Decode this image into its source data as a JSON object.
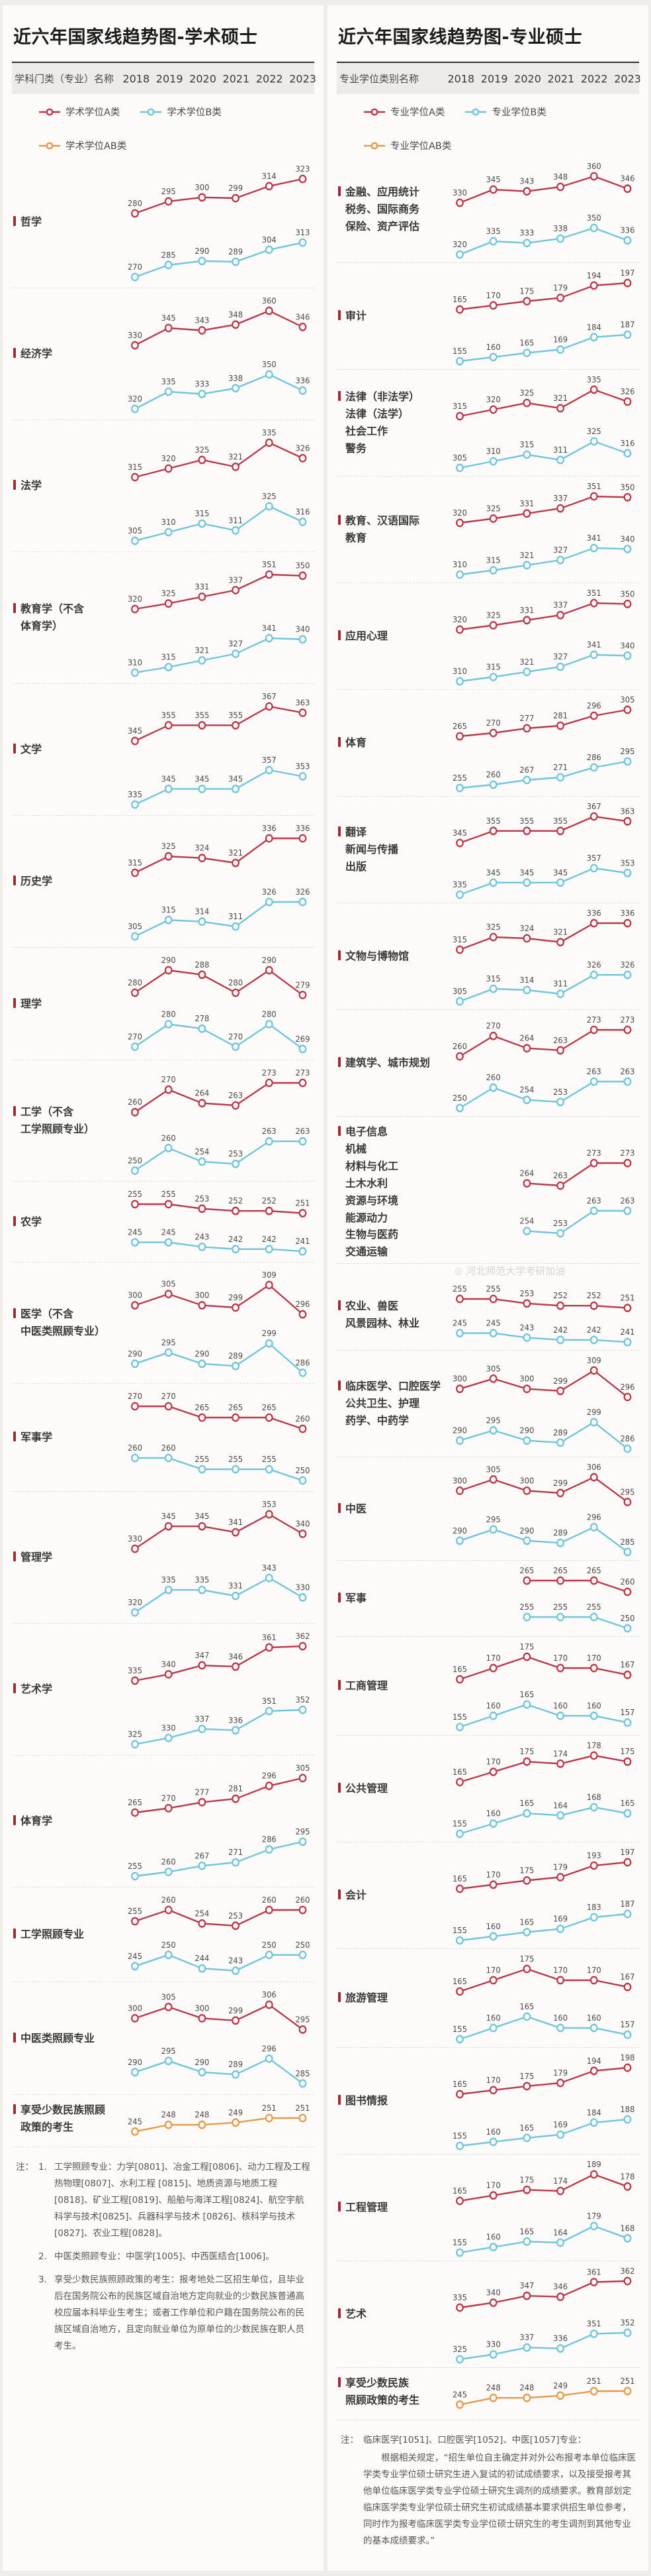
{
  "colors": {
    "a": "#b8394a",
    "b": "#72c5d8",
    "ab": "#e29a4b"
  },
  "chart_data": {
    "type": "line",
    "x": [
      2018,
      2019,
      2020,
      2021,
      2022,
      2023
    ],
    "grid": false,
    "legend_position": "top",
    "panels": [
      {
        "title": "近六年国家线趋势图-学术硕士",
        "name_header": "学科门类（专业）名称",
        "legend": [
          {
            "key": "a",
            "label": "学术学位A类"
          },
          {
            "key": "b",
            "label": "学术学位B类"
          },
          {
            "key": "ab",
            "label": "学术学位AB类"
          }
        ],
        "rows": [
          {
            "label": [
              "哲学"
            ],
            "a": [
              280,
              295,
              300,
              299,
              314,
              323
            ],
            "b": [
              270,
              285,
              290,
              289,
              304,
              313
            ]
          },
          {
            "label": [
              "经济学"
            ],
            "a": [
              330,
              345,
              343,
              348,
              360,
              346
            ],
            "b": [
              320,
              335,
              333,
              338,
              350,
              336
            ]
          },
          {
            "label": [
              "法学"
            ],
            "a": [
              315,
              320,
              325,
              321,
              335,
              326
            ],
            "b": [
              305,
              310,
              315,
              311,
              325,
              316
            ]
          },
          {
            "label": [
              "教育学（不含",
              "体育学）"
            ],
            "a": [
              320,
              325,
              331,
              337,
              351,
              350
            ],
            "b": [
              310,
              315,
              321,
              327,
              341,
              340
            ]
          },
          {
            "label": [
              "文学"
            ],
            "a": [
              345,
              355,
              355,
              355,
              367,
              363
            ],
            "b": [
              335,
              345,
              345,
              345,
              357,
              353
            ]
          },
          {
            "label": [
              "历史学"
            ],
            "a": [
              315,
              325,
              324,
              321,
              336,
              336
            ],
            "b": [
              305,
              315,
              314,
              311,
              326,
              326
            ]
          },
          {
            "label": [
              "理学"
            ],
            "a": [
              280,
              290,
              288,
              280,
              290,
              279
            ],
            "b": [
              270,
              280,
              278,
              270,
              280,
              269
            ]
          },
          {
            "label": [
              "工学（不含",
              "工学照顾专业）"
            ],
            "a": [
              260,
              270,
              264,
              263,
              273,
              273
            ],
            "b": [
              250,
              260,
              254,
              253,
              263,
              263
            ]
          },
          {
            "label": [
              "农学"
            ],
            "a": [
              255,
              255,
              253,
              252,
              252,
              251
            ],
            "b": [
              245,
              245,
              243,
              242,
              242,
              241
            ]
          },
          {
            "label": [
              "医学（不含",
              "中医类照顾专业）"
            ],
            "a": [
              300,
              305,
              300,
              299,
              309,
              296
            ],
            "b": [
              290,
              295,
              290,
              289,
              299,
              286
            ]
          },
          {
            "label": [
              "军事学"
            ],
            "a": [
              270,
              270,
              265,
              265,
              265,
              260
            ],
            "b": [
              260,
              260,
              255,
              255,
              255,
              250
            ]
          },
          {
            "label": [
              "管理学"
            ],
            "a": [
              330,
              345,
              345,
              341,
              353,
              340
            ],
            "b": [
              320,
              335,
              335,
              331,
              343,
              330
            ]
          },
          {
            "label": [
              "艺术学"
            ],
            "a": [
              335,
              340,
              347,
              346,
              361,
              362
            ],
            "b": [
              325,
              330,
              337,
              336,
              351,
              352
            ]
          },
          {
            "label": [
              "体育学"
            ],
            "a": [
              265,
              270,
              277,
              281,
              296,
              305
            ],
            "b": [
              255,
              260,
              267,
              271,
              286,
              295
            ]
          },
          {
            "label": [
              "工学照顾专业"
            ],
            "a": [
              255,
              260,
              254,
              253,
              260,
              260
            ],
            "b": [
              245,
              250,
              244,
              243,
              250,
              250
            ]
          },
          {
            "label": [
              "中医类照顾专业"
            ],
            "a": [
              300,
              305,
              300,
              299,
              306,
              295
            ],
            "b": [
              290,
              295,
              290,
              289,
              296,
              285
            ]
          },
          {
            "label": [
              "享受少数民族照顾",
              "政策的考生"
            ],
            "ab": [
              245,
              248,
              248,
              249,
              251,
              251
            ]
          }
        ],
        "notes": {
          "prefix": "注：",
          "items": [
            {
              "num": "1.",
              "text": "工学照顾专业：力学[0801]、冶金工程[0806]、动力工程及工程热物理[0807]、水利工程 [0815]、地质资源与地质工程[0818]、矿业工程[0819]、船舶与海洋工程[0824]、航空宇航科学与技术[0825]、兵器科学与技术 [0826]、核科学与技术[0827]、农业工程[0828]。"
            },
            {
              "num": "2.",
              "text": "中医类照顾专业：中医学[1005]、中西医结合[1006]。"
            },
            {
              "num": "3.",
              "text": "享受少数民族照顾政策的考生：报考地处二区招生单位，且毕业后在国务院公布的民族区域自治地方定向就业的少数民族普通高校应届本科毕业生考生；或者工作单位和户籍在国务院公布的民族区域自治地方，且定向就业单位为原单位的少数民族在职人员考生。"
            }
          ]
        }
      },
      {
        "title": "近六年国家线趋势图-专业硕士",
        "name_header": "专业学位类别名称",
        "watermark": {
          "icon": "◎",
          "text": "河北师范大学考研加油"
        },
        "legend": [
          {
            "key": "a",
            "label": "专业学位A类"
          },
          {
            "key": "b",
            "label": "专业学位B类"
          },
          {
            "key": "ab",
            "label": "专业学位AB类"
          }
        ],
        "rows": [
          {
            "label": [
              "金融、应用统计",
              "税务、国际商务",
              "保险、资产评估"
            ],
            "a": [
              330,
              345,
              343,
              348,
              360,
              346
            ],
            "b": [
              320,
              335,
              333,
              338,
              350,
              336
            ]
          },
          {
            "label": [
              "审计"
            ],
            "a": [
              165,
              170,
              175,
              179,
              194,
              197
            ],
            "b": [
              155,
              160,
              165,
              169,
              184,
              187
            ]
          },
          {
            "label": [
              "法律（非法学）",
              "法律（法学）",
              "社会工作",
              "警务"
            ],
            "a": [
              315,
              320,
              325,
              321,
              335,
              326
            ],
            "b": [
              305,
              310,
              315,
              311,
              325,
              316
            ]
          },
          {
            "label": [
              "教育、汉语国际",
              "教育"
            ],
            "a": [
              320,
              325,
              331,
              337,
              351,
              350
            ],
            "b": [
              310,
              315,
              321,
              327,
              341,
              340
            ]
          },
          {
            "label": [
              "应用心理"
            ],
            "a": [
              320,
              325,
              331,
              337,
              351,
              350
            ],
            "b": [
              310,
              315,
              321,
              327,
              341,
              340
            ]
          },
          {
            "label": [
              "体育"
            ],
            "a": [
              265,
              270,
              277,
              281,
              296,
              305
            ],
            "b": [
              255,
              260,
              267,
              271,
              286,
              295
            ]
          },
          {
            "label": [
              "翻译",
              "新闻与传播",
              "出版"
            ],
            "a": [
              345,
              355,
              355,
              355,
              367,
              363
            ],
            "b": [
              335,
              345,
              345,
              345,
              357,
              353
            ]
          },
          {
            "label": [
              "文物与博物馆"
            ],
            "a": [
              315,
              325,
              324,
              321,
              336,
              336
            ],
            "b": [
              305,
              315,
              314,
              311,
              326,
              326
            ]
          },
          {
            "label": [
              "建筑学、城市规划"
            ],
            "a": [
              260,
              270,
              264,
              263,
              273,
              273
            ],
            "b": [
              250,
              260,
              254,
              253,
              263,
              263
            ]
          },
          {
            "label": [
              "电子信息",
              "机械",
              "材料与化工",
              "土木水利",
              "资源与环境",
              "能源动力",
              "生物与医药",
              "交通运输"
            ],
            "a": [
              null,
              null,
              264,
              263,
              273,
              273
            ],
            "b": [
              null,
              null,
              254,
              253,
              263,
              263
            ],
            "watermark_below": true
          },
          {
            "label": [
              "农业、兽医",
              "风景园林、林业"
            ],
            "a": [
              255,
              255,
              253,
              252,
              252,
              251
            ],
            "b": [
              245,
              245,
              243,
              242,
              242,
              241
            ]
          },
          {
            "label": [
              "临床医学、口腔医学",
              "公共卫生、护理",
              "药学、中药学"
            ],
            "a": [
              300,
              305,
              300,
              299,
              309,
              296
            ],
            "b": [
              290,
              295,
              290,
              289,
              299,
              286
            ]
          },
          {
            "label": [
              "中医"
            ],
            "a": [
              300,
              305,
              300,
              299,
              306,
              295
            ],
            "b": [
              290,
              295,
              290,
              289,
              296,
              285
            ]
          },
          {
            "label": [
              "军事"
            ],
            "a": [
              null,
              null,
              265,
              265,
              265,
              260
            ],
            "b": [
              null,
              null,
              255,
              255,
              255,
              250
            ]
          },
          {
            "label": [
              "工商管理"
            ],
            "a": [
              165,
              170,
              175,
              170,
              170,
              167
            ],
            "b": [
              155,
              160,
              165,
              160,
              160,
              157
            ]
          },
          {
            "label": [
              "公共管理"
            ],
            "a": [
              165,
              170,
              175,
              174,
              178,
              175
            ],
            "b": [
              155,
              160,
              165,
              164,
              168,
              165
            ]
          },
          {
            "label": [
              "会计"
            ],
            "a": [
              165,
              170,
              175,
              179,
              193,
              197
            ],
            "b": [
              155,
              160,
              165,
              169,
              183,
              187
            ]
          },
          {
            "label": [
              "旅游管理"
            ],
            "a": [
              165,
              170,
              175,
              170,
              170,
              167
            ],
            "b": [
              155,
              160,
              165,
              160,
              160,
              157
            ]
          },
          {
            "label": [
              "图书情报"
            ],
            "a": [
              165,
              170,
              175,
              179,
              194,
              198
            ],
            "b": [
              155,
              160,
              165,
              169,
              184,
              188
            ]
          },
          {
            "label": [
              "工程管理"
            ],
            "a": [
              165,
              170,
              175,
              174,
              189,
              178
            ],
            "b": [
              155,
              160,
              165,
              164,
              179,
              168
            ]
          },
          {
            "label": [
              "艺术"
            ],
            "a": [
              335,
              340,
              347,
              346,
              361,
              362
            ],
            "b": [
              325,
              330,
              337,
              336,
              351,
              352
            ]
          },
          {
            "label": [
              "享受少数民族",
              "照顾政策的考生"
            ],
            "ab": [
              245,
              248,
              248,
              249,
              251,
              251
            ]
          }
        ],
        "notes": {
          "prefix": "注：",
          "lead": "临床医学[1051]、口腔医学[1052]、中医[1057]专业：",
          "body": "根据相关规定，“招生单位自主确定并对外公布报考本单位临床医学类专业学位硕士研究生进入复试的初试成绩要求，以及接受报考其他单位临床医学类专业学位硕士研究生调剂的成绩要求。教育部划定临床医学类专业学位硕士研究生初试成绩基本要求供招生单位参考，同时作为报考临床医学类专业学位硕士研究生的考生调剂到其他专业的基本成绩要求。”"
        }
      }
    ]
  }
}
